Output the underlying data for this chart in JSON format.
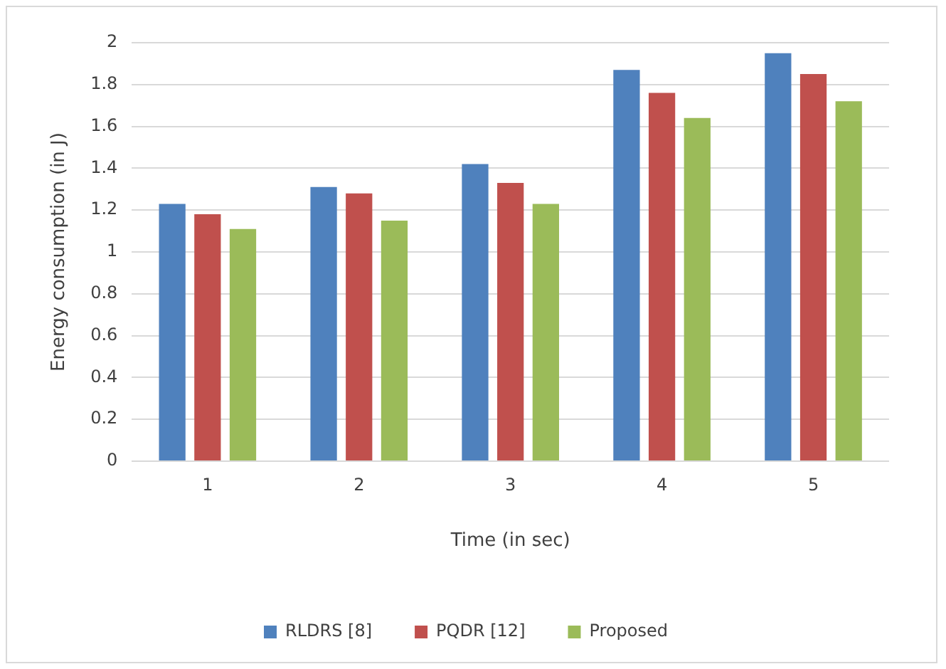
{
  "chart_data": {
    "type": "bar",
    "xlabel": "Time (in sec)",
    "ylabel": "Energy consumption (in J)",
    "categories": [
      "1",
      "2",
      "3",
      "4",
      "5"
    ],
    "series": [
      {
        "name": "RLDRS [8]",
        "color": "#4f81bd",
        "values": [
          1.23,
          1.31,
          1.42,
          1.87,
          1.95
        ]
      },
      {
        "name": "PQDR [12]",
        "color": "#c0504d",
        "values": [
          1.18,
          1.28,
          1.33,
          1.76,
          1.85
        ]
      },
      {
        "name": "Proposed",
        "color": "#9bbb59",
        "values": [
          1.11,
          1.15,
          1.23,
          1.64,
          1.72
        ]
      }
    ],
    "ylim": [
      0,
      2
    ],
    "yticks": [
      0,
      0.2,
      0.4,
      0.6,
      0.8,
      1,
      1.2,
      1.4,
      1.6,
      1.8,
      2
    ],
    "grid": "y",
    "legend": "bottom"
  }
}
